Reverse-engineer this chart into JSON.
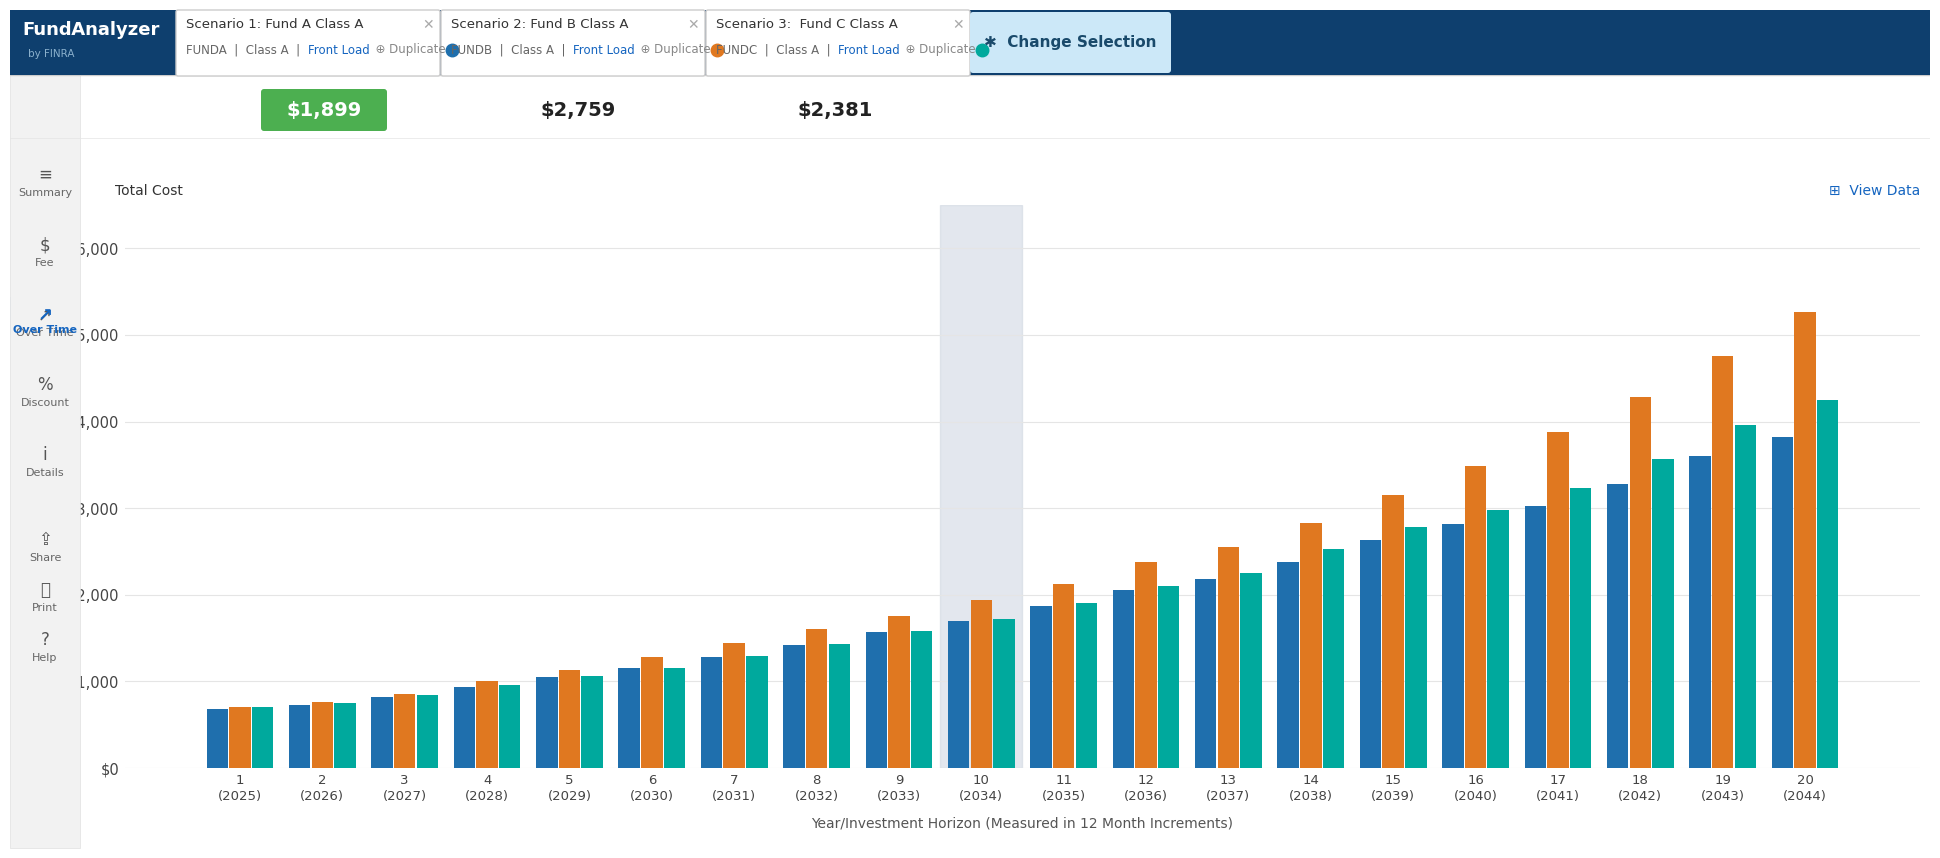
{
  "title": "Total Cost",
  "xlabel": "Year/Investment Horizon (Measured in 12 Month Increments)",
  "ylim": [
    0,
    6500
  ],
  "yticks": [
    0,
    1000,
    2000,
    3000,
    4000,
    5000,
    6000
  ],
  "ytick_labels": [
    "$0",
    "$1,000",
    "$2,000",
    "$3,000",
    "$4,000",
    "$5,000",
    "$6,000"
  ],
  "year_labels": [
    "1\n(2025)",
    "2\n(2026)",
    "3\n(2027)",
    "4\n(2028)",
    "5\n(2029)",
    "6\n(2030)",
    "7\n(2031)",
    "8\n(2032)",
    "9\n(2033)",
    "10\n(2034)",
    "11\n(2035)",
    "12\n(2036)",
    "13\n(2037)",
    "14\n(2038)",
    "15\n(2039)",
    "16\n(2040)",
    "17\n(2041)",
    "18\n(2042)",
    "19\n(2043)",
    "20\n(2044)"
  ],
  "fund_a": [
    680,
    730,
    820,
    940,
    1050,
    1150,
    1280,
    1420,
    1570,
    1700,
    1870,
    2050,
    2180,
    2380,
    2630,
    2820,
    3030,
    3280,
    3600,
    3820
  ],
  "fund_b": [
    700,
    760,
    860,
    1000,
    1130,
    1280,
    1440,
    1610,
    1760,
    1940,
    2130,
    2380,
    2550,
    2830,
    3150,
    3490,
    3880,
    4280,
    4760,
    5270
  ],
  "fund_c": [
    700,
    750,
    840,
    960,
    1060,
    1160,
    1290,
    1430,
    1580,
    1720,
    1900,
    2100,
    2250,
    2530,
    2780,
    2980,
    3230,
    3570,
    3960,
    4250
  ],
  "color_a": "#1f6fad",
  "color_b": "#e07820",
  "color_c": "#00a99d",
  "highlight_year_idx": 9,
  "highlight_color": "#cdd5e0",
  "bg_color": "#ffffff",
  "grid_color": "#e5e5e5",
  "scenario1_label": "Scenario 1: Fund A Class A",
  "scenario2_label": "Scenario 2: Fund B Class A",
  "scenario3_label": "Fund C Class A",
  "fund1_code": "FUNDA",
  "fund2_code": "FUNDB",
  "fund3_code": "FUNDC",
  "total1": "$1,899",
  "total2": "$2,759",
  "total3": "$2,381",
  "finra_bg": "#0e3f6e",
  "btn_bg": "#cce8f8",
  "btn_text": "#1a4a6b",
  "sidebar_bg": "#f2f2f2",
  "sidebar_border": "#e0e0e0",
  "header_border": "#cccccc",
  "dot_a": "#1f6fad",
  "dot_b": "#e07820",
  "dot_c": "#00a99d",
  "green_box": "#4caf50",
  "view_data_color": "#1565c0"
}
